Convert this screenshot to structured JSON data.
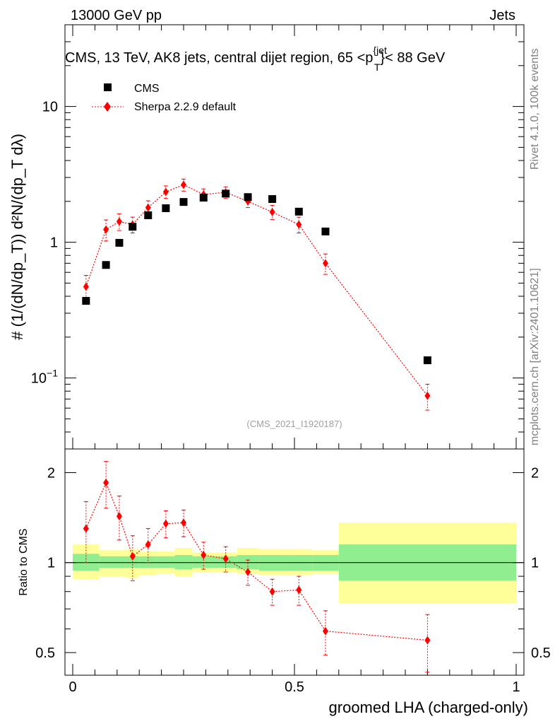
{
  "header": {
    "energy_label": "13000 GeV pp",
    "process_label": "Jets",
    "plot_title": "CMS, 13 TeV, AK8 jets, central dijet region, 65 <p_T^{jet}< 88 GeV",
    "side_label_top": "Rivet 4.1.0,  100k events",
    "side_label_bottom": "mcplots.cern.ch [arXiv:2401.10621]",
    "analysis_id": "(CMS_2021_I1920187)"
  },
  "chart_data": [
    {
      "type": "scatter",
      "panel": "main",
      "yscale": "log",
      "ylim": [
        0.03,
        40
      ],
      "xlim": [
        -0.02,
        1.0
      ],
      "ylabel": "1/(dN/dp_T) d²N/(dp_T dλ)",
      "y_ticks": [
        "10⁻¹",
        "1",
        "10"
      ],
      "legend": [
        "CMS",
        "Sherpa 2.2.9 default"
      ],
      "legend_position": "top-left",
      "series": [
        {
          "name": "CMS",
          "color": "#000000",
          "x": [
            0.03,
            0.075,
            0.105,
            0.135,
            0.17,
            0.21,
            0.25,
            0.295,
            0.345,
            0.395,
            0.45,
            0.51,
            0.57,
            0.8
          ],
          "values": [
            0.37,
            0.68,
            0.99,
            1.3,
            1.58,
            1.78,
            1.98,
            2.13,
            2.28,
            2.15,
            2.08,
            1.68,
            1.2,
            0.135
          ],
          "x_halfwidth": [
            0.015,
            0.015,
            0.015,
            0.015,
            0.02,
            0.02,
            0.02,
            0.025,
            0.025,
            0.025,
            0.03,
            0.03,
            0.03,
            0.2
          ]
        },
        {
          "name": "Sherpa 2.2.9 default",
          "color": "#ff0000",
          "x": [
            0.03,
            0.075,
            0.105,
            0.135,
            0.17,
            0.21,
            0.25,
            0.295,
            0.345,
            0.395,
            0.45,
            0.51,
            0.57,
            0.8
          ],
          "values": [
            0.47,
            1.24,
            1.42,
            1.35,
            1.8,
            2.35,
            2.65,
            2.25,
            2.33,
            2.0,
            1.67,
            1.35,
            0.7,
            0.074
          ],
          "errors": [
            0.1,
            0.22,
            0.2,
            0.18,
            0.22,
            0.25,
            0.27,
            0.22,
            0.23,
            0.2,
            0.2,
            0.18,
            0.12,
            0.016
          ]
        }
      ]
    },
    {
      "type": "scatter",
      "panel": "ratio",
      "yscale": "log",
      "ylim": [
        0.42,
        2.4
      ],
      "xlim": [
        -0.02,
        1.0
      ],
      "xlabel": "groomed LHA (charged-only)",
      "ylabel": "Ratio to CMS",
      "x_ticks": [
        "0",
        "0.5",
        "1"
      ],
      "y_ticks": [
        "0.5",
        "1",
        "2"
      ],
      "reference_line": 1.0,
      "uncertainty_bands": {
        "bin_edges": [
          0.0,
          0.06,
          0.09,
          0.12,
          0.15,
          0.19,
          0.23,
          0.27,
          0.32,
          0.37,
          0.42,
          0.48,
          0.54,
          0.6,
          1.0
        ],
        "stat": {
          "color": "#90ee90",
          "low": [
            0.94,
            0.96,
            0.96,
            0.96,
            0.96,
            0.96,
            0.95,
            0.96,
            0.96,
            0.95,
            0.94,
            0.94,
            0.94,
            0.87
          ],
          "high": [
            1.07,
            1.05,
            1.05,
            1.05,
            1.05,
            1.05,
            1.06,
            1.05,
            1.05,
            1.06,
            1.06,
            1.06,
            1.06,
            1.15
          ]
        },
        "total": {
          "color": "#ffff99",
          "low": [
            0.88,
            0.9,
            0.9,
            0.89,
            0.91,
            0.92,
            0.9,
            0.93,
            0.93,
            0.92,
            0.91,
            0.91,
            0.92,
            0.73
          ],
          "high": [
            1.15,
            1.1,
            1.1,
            1.11,
            1.09,
            1.09,
            1.12,
            1.08,
            1.08,
            1.12,
            1.11,
            1.11,
            1.1,
            1.36
          ]
        }
      },
      "series": [
        {
          "name": "Sherpa 2.2.9 default",
          "color": "#ff0000",
          "x": [
            0.03,
            0.075,
            0.105,
            0.135,
            0.17,
            0.21,
            0.25,
            0.295,
            0.345,
            0.395,
            0.45,
            0.51,
            0.57,
            0.8
          ],
          "values": [
            1.3,
            1.85,
            1.43,
            1.05,
            1.15,
            1.35,
            1.36,
            1.06,
            1.03,
            0.93,
            0.8,
            0.81,
            0.59,
            0.55
          ],
          "errors": [
            0.3,
            0.33,
            0.24,
            0.18,
            0.15,
            0.14,
            0.14,
            0.11,
            0.1,
            0.09,
            0.08,
            0.09,
            0.1,
            0.12
          ]
        }
      ]
    }
  ]
}
